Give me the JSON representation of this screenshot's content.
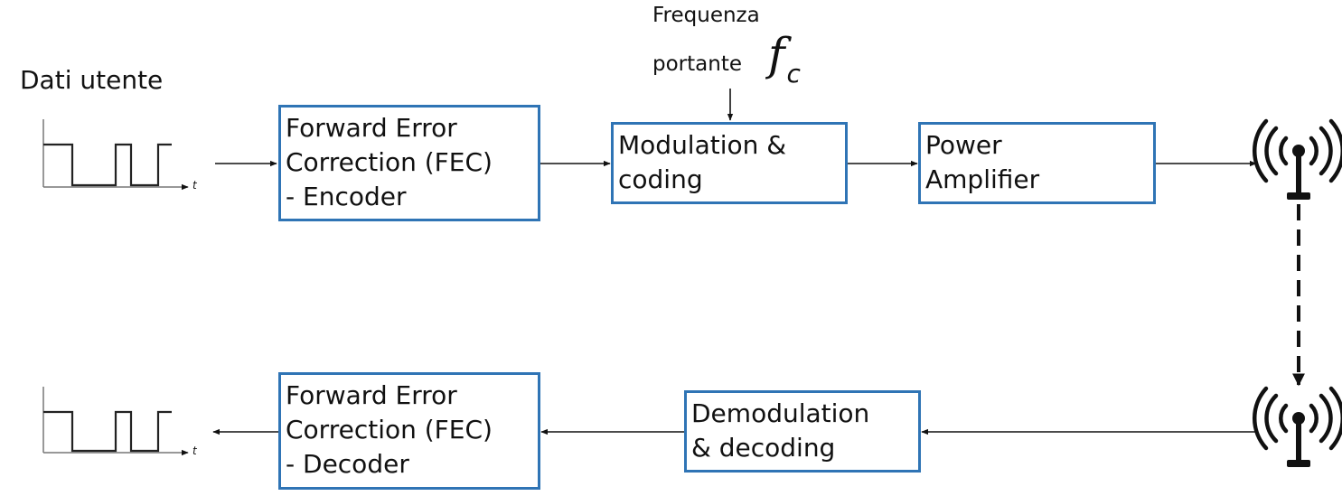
{
  "input_label": "Dati utente",
  "carrier": {
    "label_line1": "Frequenza",
    "label_line2": "portante",
    "symbol": "f",
    "subscript": "c"
  },
  "axis_symbol": "t",
  "blocks": {
    "fec_encoder": [
      "Forward Error",
      "Correction (FEC)",
      "- Encoder"
    ],
    "modulation": [
      "Modulation &",
      "coding"
    ],
    "power_amp": [
      "Power",
      "Amplifier"
    ],
    "demodulation": [
      "Demodulation",
      "& decoding"
    ],
    "fec_decoder": [
      "Forward Error",
      "Correction (FEC)",
      "- Decoder"
    ]
  },
  "colors": {
    "block_border": "#2f74b5",
    "lines": "#111111"
  },
  "icons": {
    "tx_antenna": "antenna-icon",
    "rx_antenna": "antenna-icon",
    "input_signal": "square-wave-icon",
    "output_signal": "square-wave-icon"
  }
}
